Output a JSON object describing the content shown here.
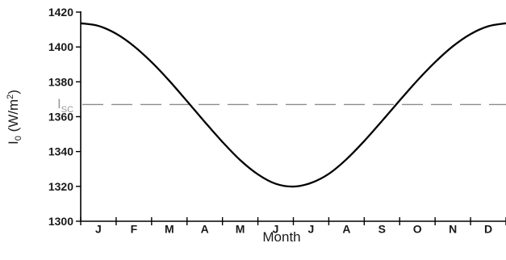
{
  "chart_data": {
    "type": "line",
    "xlabel": "Month",
    "ylabel_main": "I",
    "ylabel_sub": "0",
    "ylabel_unit_pre": " (W/m",
    "ylabel_unit_sup": "2",
    "ylabel_unit_post": ")",
    "ylim": [
      1300,
      1420
    ],
    "yticks": [
      1300,
      1320,
      1340,
      1360,
      1380,
      1400,
      1420
    ],
    "ytick_labels": [
      "1300",
      "1320",
      "1340",
      "1360",
      "1380",
      "1400",
      "1420"
    ],
    "months": [
      "J",
      "F",
      "M",
      "A",
      "M",
      "J",
      "J",
      "A",
      "S",
      "O",
      "N",
      "D"
    ],
    "xlim": [
      0,
      12
    ],
    "series": [
      {
        "x": [
          0.0,
          0.5,
          1.0,
          1.5,
          2.0,
          2.5,
          3.0,
          3.5,
          4.0,
          4.5,
          5.0,
          5.5,
          6.0,
          6.5,
          7.0,
          7.5,
          8.0,
          8.5,
          9.0,
          9.5,
          10.0,
          10.5,
          11.0,
          11.5,
          12.0
        ],
        "y": [
          1413.6,
          1412.1,
          1407.6,
          1400.5,
          1391.3,
          1380.6,
          1368.9,
          1357.0,
          1345.5,
          1335.1,
          1326.9,
          1321.5,
          1319.9,
          1322.0,
          1327.2,
          1335.6,
          1346.0,
          1357.5,
          1369.3,
          1380.8,
          1391.3,
          1400.4,
          1407.4,
          1411.9,
          1413.6
        ],
        "color": "#000000"
      }
    ],
    "reference_line": {
      "label_main": "I",
      "label_sub": "SC",
      "value": 1367,
      "color": "#8c8c8c"
    }
  }
}
